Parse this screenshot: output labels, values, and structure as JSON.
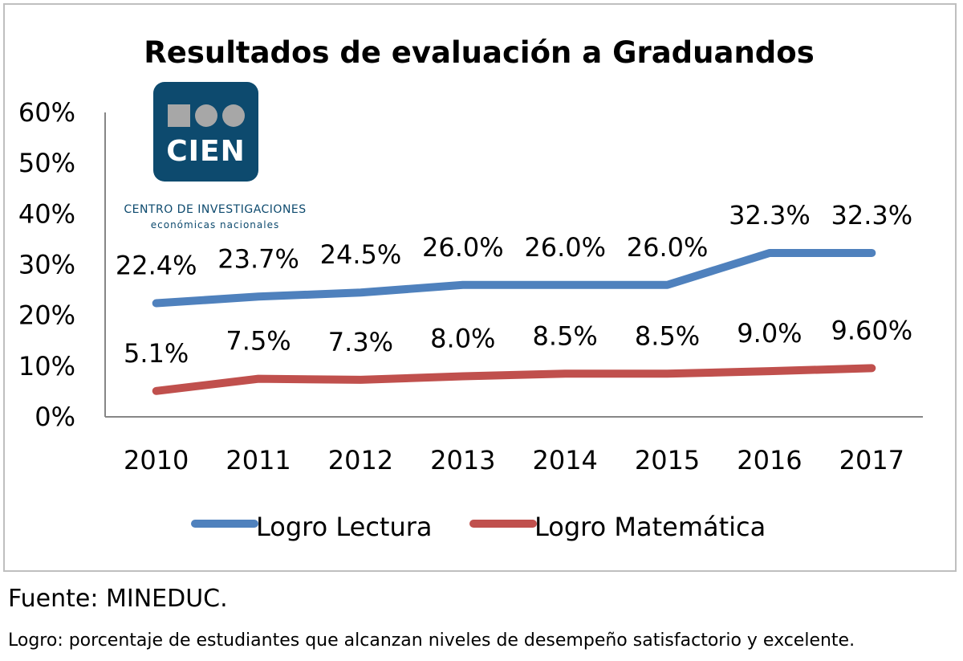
{
  "chart_data": {
    "type": "line",
    "title": "Resultados de evaluación a Graduandos",
    "categories": [
      "2010",
      "2011",
      "2012",
      "2013",
      "2014",
      "2015",
      "2016",
      "2017"
    ],
    "yticks": [
      "0%",
      "10%",
      "20%",
      "30%",
      "40%",
      "50%",
      "60%"
    ],
    "ylim": [
      0,
      60
    ],
    "grid": false,
    "legend_position": "bottom",
    "series": [
      {
        "name": "Logro Lectura",
        "color": "#4f81bd",
        "values": [
          22.4,
          23.7,
          24.5,
          26.0,
          26.0,
          26.0,
          32.3,
          32.3
        ],
        "labels": [
          "22.4%",
          "23.7%",
          "24.5%",
          "26.0%",
          "26.0%",
          "26.0%",
          "32.3%",
          "32.3%"
        ]
      },
      {
        "name": "Logro Matemática",
        "color": "#c0504d",
        "values": [
          5.1,
          7.5,
          7.3,
          8.0,
          8.5,
          8.5,
          9.0,
          9.6
        ],
        "labels": [
          "5.1%",
          "7.5%",
          "7.3%",
          "8.0%",
          "8.5%",
          "8.5%",
          "9.0%",
          "9.60%"
        ]
      }
    ]
  },
  "logo": {
    "word": "CIEN",
    "line1": "CENTRO DE INVESTIGACIONES",
    "line2": "económicas nacionales",
    "color": "#0d4a6e"
  },
  "footer": {
    "source": "Fuente: MINEDUC.",
    "note": "Logro: porcentaje de estudiantes que alcanzan niveles de desempeño satisfactorio y excelente."
  }
}
